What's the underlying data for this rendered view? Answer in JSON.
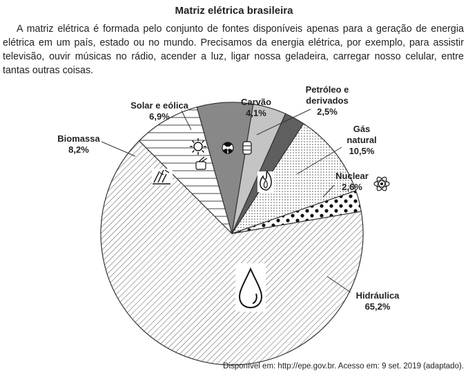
{
  "title": "Matriz elétrica brasileira",
  "paragraph": "A matriz elétrica é formada pelo conjunto de fontes disponíveis apenas para a geração de energia elétrica em um país, estado ou no mundo. Precisamos da energia elétrica, por exemplo, para assistir televisão, ouvir músicas no rádio, acender a luz, ligar nossa geladeira, carregar nosso celular, entre tantas outras coisas.",
  "source": "Disponível em: http://epe.gov.br. Acesso em: 9 set. 2019 (adaptado).",
  "chart_data": {
    "type": "pie",
    "title": "Matriz elétrica brasileira",
    "slices": [
      {
        "label": [
          "Solar e eólica"
        ],
        "value_text": "6,9%",
        "value": 6.9,
        "fill": "#888888",
        "icon": "sun-and-wind-icons"
      },
      {
        "label": [
          "Carvão"
        ],
        "value_text": "4,1%",
        "value": 4.1,
        "fill": "#c4c4c4",
        "icon": "coal-icon"
      },
      {
        "label": [
          "Petróleo e",
          "derivados"
        ],
        "value_text": "2,5%",
        "value": 2.5,
        "fill": "#5f5f5f",
        "icon": "oil-barrel-icon"
      },
      {
        "label": [
          "Gás",
          "natural"
        ],
        "value_text": "10,5%",
        "value": 10.5,
        "fill": "dots",
        "icon": "flame-icon"
      },
      {
        "label": [
          "Nuclear"
        ],
        "value_text": "2,6%",
        "value": 2.6,
        "fill": "bigdots",
        "icon": "atom-icon"
      },
      {
        "label": [
          "Hidráulica"
        ],
        "value_text": "65,2%",
        "value": 65.2,
        "fill": "diagonal-hatch",
        "icon": "water-drop-icon"
      },
      {
        "label": [
          "Biomassa"
        ],
        "value_text": "8,2%",
        "value": 8.2,
        "fill": "horizontal-hatch",
        "icon": "biomass-icon"
      }
    ]
  }
}
